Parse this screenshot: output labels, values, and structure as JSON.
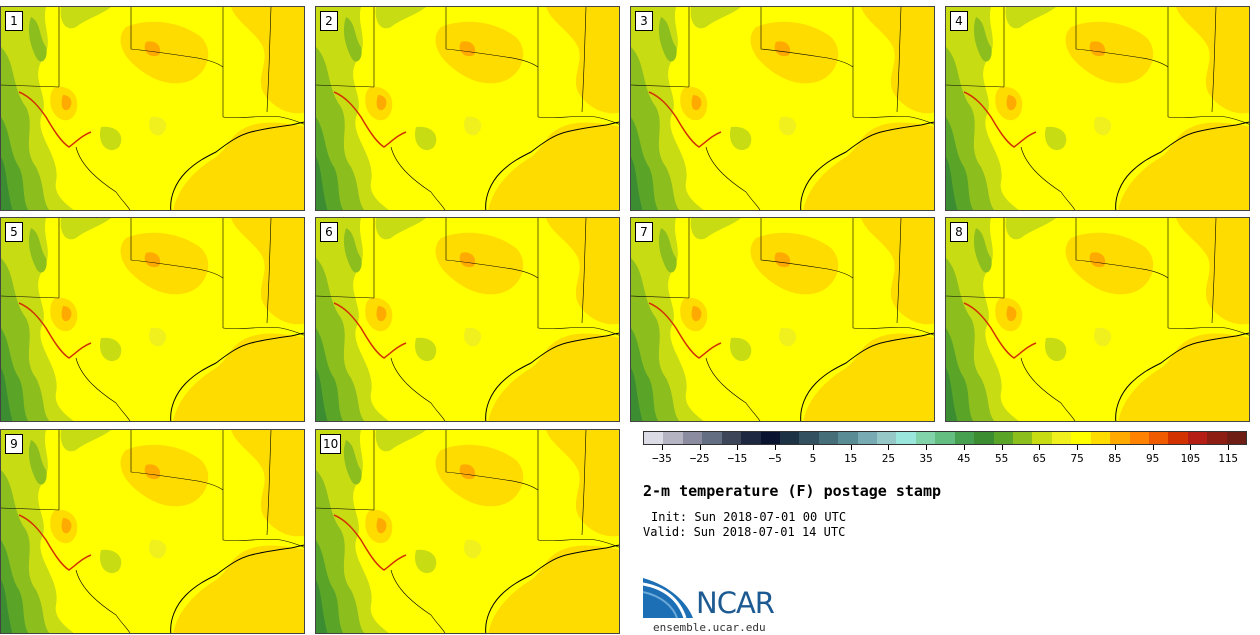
{
  "members": [
    "1",
    "2",
    "3",
    "4",
    "5",
    "6",
    "7",
    "8",
    "9",
    "10"
  ],
  "colorbar": {
    "colors": [
      "#dcdce6",
      "#b4b4c3",
      "#8c8ca0",
      "#646e82",
      "#3c4658",
      "#1e2840",
      "#0a1430",
      "#1e3246",
      "#32505f",
      "#466e78",
      "#5a8c96",
      "#78aab4",
      "#96c8c8",
      "#9be6dc",
      "#82d2aa",
      "#64be82",
      "#46a050",
      "#3c8c32",
      "#5aa528",
      "#8cbe1e",
      "#c8dc14",
      "#f0f01e",
      "#ffff00",
      "#ffdc00",
      "#ffaa00",
      "#ff8200",
      "#f05a00",
      "#d23200",
      "#b41e14",
      "#8c1e14",
      "#6e1e14"
    ],
    "ticks": [
      "-35",
      "-25",
      "-15",
      "-5",
      "5",
      "15",
      "25",
      "35",
      "45",
      "55",
      "65",
      "75",
      "85",
      "95",
      "105",
      "115"
    ],
    "tick_values": [
      -35,
      -25,
      -15,
      -5,
      5,
      15,
      25,
      35,
      45,
      55,
      65,
      75,
      85,
      95,
      105,
      115
    ],
    "min": -40,
    "max": 120
  },
  "title": "2-m temperature (F) postage stamp",
  "init": "Init: Sun 2018-07-01 00 UTC",
  "valid": "Valid: Sun 2018-07-01 14 UTC",
  "logo": {
    "name": "NCAR",
    "url": "ensemble.ucar.edu"
  }
}
